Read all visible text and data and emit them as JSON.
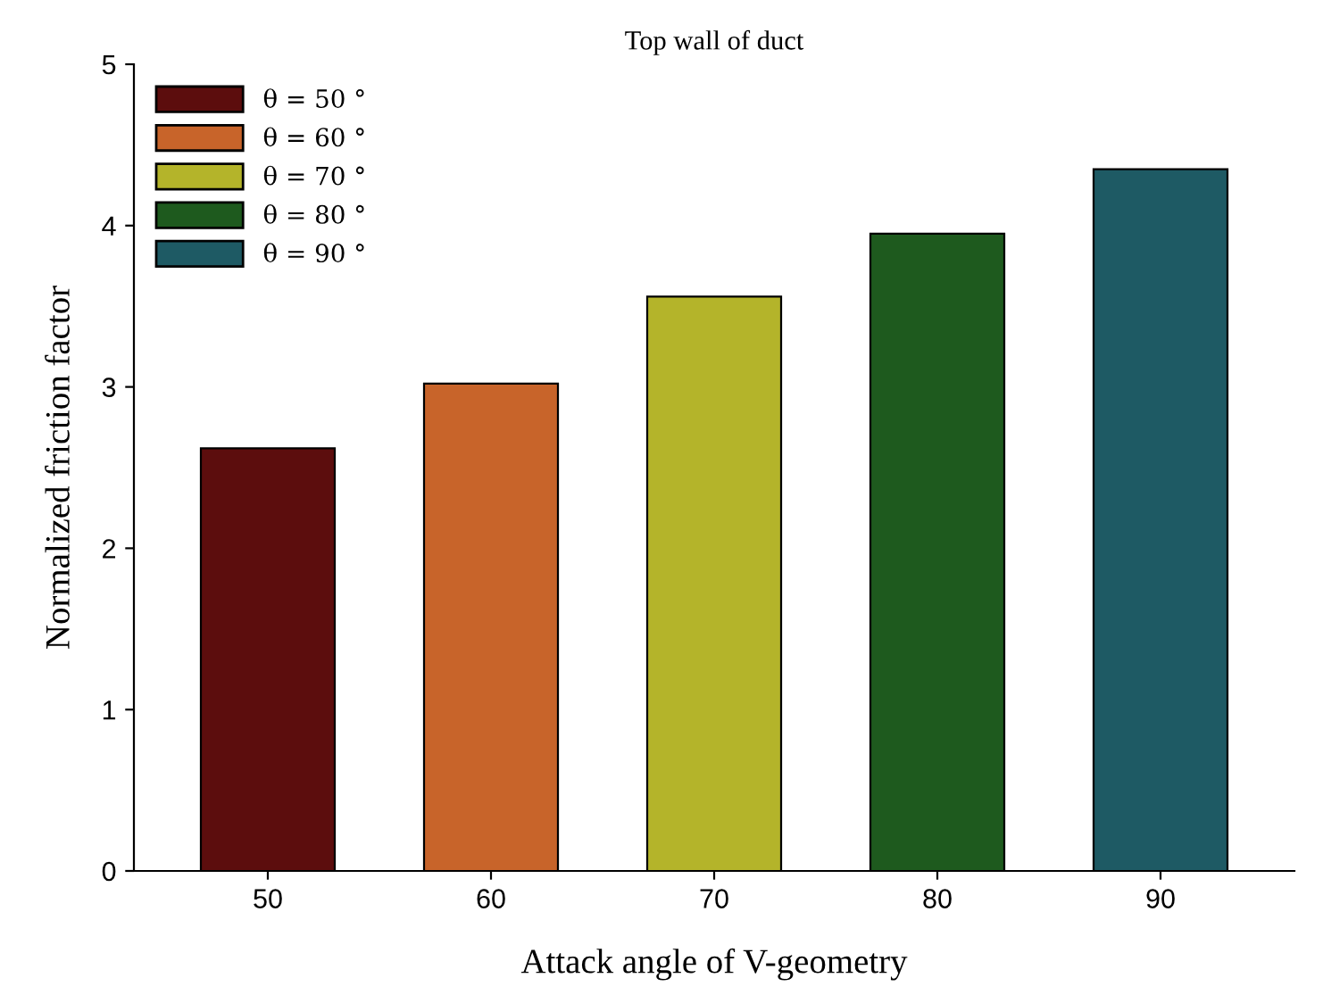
{
  "chart_data": {
    "type": "bar",
    "title": "Top wall of duct",
    "xlabel": "Attack angle of V-geometry",
    "ylabel": "Normalized friction factor",
    "categories": [
      "50",
      "60",
      "70",
      "80",
      "90"
    ],
    "series": [
      {
        "name": "θ = 50 °",
        "color": "#5c0d0d",
        "values": [
          2.62,
          null,
          null,
          null,
          null
        ]
      },
      {
        "name": "θ = 60 °",
        "color": "#c8642a",
        "values": [
          null,
          3.02,
          null,
          null,
          null
        ]
      },
      {
        "name": "θ = 70 °",
        "color": "#b4b42a",
        "values": [
          null,
          null,
          3.56,
          null,
          null
        ]
      },
      {
        "name": "θ = 80 °",
        "color": "#1e5a1e",
        "values": [
          null,
          null,
          null,
          3.95,
          null
        ]
      },
      {
        "name": "θ = 90 °",
        "color": "#1e5a64",
        "values": [
          null,
          null,
          null,
          null,
          4.35
        ]
      }
    ],
    "ylim": [
      0,
      5
    ],
    "yticks": [
      0,
      1,
      2,
      3,
      4,
      5
    ],
    "grid": false,
    "legend": "top left"
  }
}
